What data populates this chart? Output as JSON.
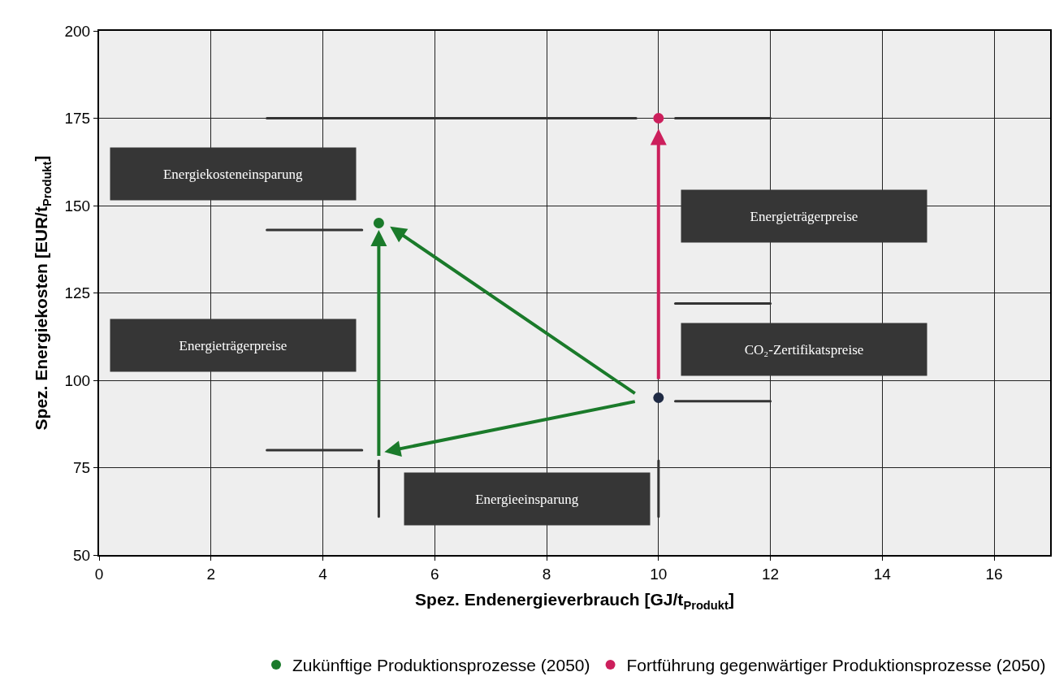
{
  "chart_data": {
    "type": "scatter",
    "xlabel": "Spez. Endenergieverbrauch [GJ/t$_{Produkt}$]",
    "ylabel": "Spez. Energiekosten [EUR/t$_{Produkt}$]",
    "xlim": [
      0,
      17
    ],
    "xticks": [
      0,
      2,
      4,
      6,
      8,
      10,
      12,
      14,
      16
    ],
    "ylim": [
      50,
      200
    ],
    "yticks": [
      50,
      75,
      100,
      125,
      150,
      175,
      200
    ],
    "grid": true,
    "legend": "bottom right",
    "series": [
      {
        "type": "line",
        "color": "#333333",
        "x": [
          3,
          9.6
        ],
        "values": [
          175,
          175
        ]
      },
      {
        "type": "line",
        "color": "#333333",
        "x": [
          10.3,
          12
        ],
        "values": [
          175,
          175
        ]
      },
      {
        "type": "line",
        "color": "#333333",
        "x": [
          3,
          4.7
        ],
        "values": [
          143,
          143
        ]
      },
      {
        "type": "line",
        "color": "#333333",
        "x": [
          3,
          4.7
        ],
        "values": [
          80,
          80
        ]
      },
      {
        "type": "line",
        "color": "#333333",
        "x": [
          10.3,
          12
        ],
        "values": [
          122,
          122
        ]
      },
      {
        "type": "line",
        "color": "#333333",
        "x": [
          10.3,
          12
        ],
        "values": [
          94,
          94
        ]
      },
      {
        "type": "line",
        "color": "#333333",
        "x": [
          5,
          5
        ],
        "values": [
          61,
          77
        ]
      },
      {
        "type": "line",
        "color": "#333333",
        "x": [
          10,
          10
        ],
        "values": [
          61,
          77
        ]
      },
      {
        "name": "Zukünftige Produktionsprozesse (2050)",
        "marker": "circle",
        "color": "#1a7a2a",
        "x": [
          5
        ],
        "values": [
          145
        ]
      },
      {
        "name": "Fortführung gegenwärtiger Produktionsprozesse (2050)",
        "marker": "circle",
        "color": "#cc1f5c",
        "x": [
          10
        ],
        "values": [
          175
        ]
      },
      {
        "color": "#1f2a44",
        "marker": "circle",
        "x": [
          10
        ],
        "values": [
          95
        ]
      }
    ],
    "annotations": [
      "Energiekosteneinsparung",
      "Energieträgerpreise",
      "Energieträgerpreise",
      "CO₂-Zertifikatspreise",
      "Energieeinsparung"
    ]
  }
}
